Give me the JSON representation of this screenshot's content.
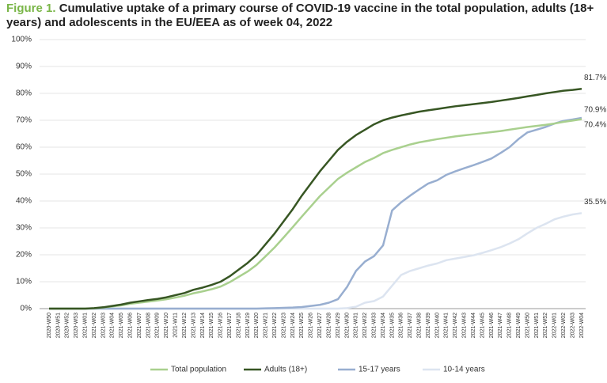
{
  "chart_data": {
    "type": "line",
    "figure_label": "Figure 1.",
    "title": "Cumulative uptake of a primary course of COVID-19 vaccine in the total population, adults (18+ years) and adolescents in the EU/EEA as of week 04, 2022",
    "categories": [
      "2020-W50",
      "2020-W51",
      "2020-W52",
      "2020-W53",
      "2021-W01",
      "2021-W02",
      "2021-W03",
      "2021-W04",
      "2021-W05",
      "2021-W06",
      "2021-W07",
      "2021-W08",
      "2021-W09",
      "2021-W10",
      "2021-W11",
      "2021-W12",
      "2021-W13",
      "2021-W14",
      "2021-W15",
      "2021-W16",
      "2021-W17",
      "2021-W18",
      "2021-W19",
      "2021-W20",
      "2021-W21",
      "2021-W22",
      "2021-W23",
      "2021-W24",
      "2021-W25",
      "2021-W26",
      "2021-W27",
      "2021-W28",
      "2021-W29",
      "2021-W30",
      "2021-W31",
      "2021-W32",
      "2021-W33",
      "2021-W34",
      "2021-W35",
      "2021-W36",
      "2021-W37",
      "2021-W38",
      "2021-W39",
      "2021-W40",
      "2021-W41",
      "2021-W42",
      "2021-W43",
      "2021-W44",
      "2021-W45",
      "2021-W46",
      "2021-W47",
      "2021-W48",
      "2021-W49",
      "2021-W50",
      "2021-W51",
      "2021-W52",
      "2022-W01",
      "2022-W02",
      "2022-W03",
      "2022-W04"
    ],
    "series": [
      {
        "name": "Total population",
        "color": "#a9d08e",
        "end_label": "70.4%",
        "values": [
          0,
          0,
          0,
          0,
          0,
          0.1,
          0.4,
          0.8,
          1.2,
          1.8,
          2.2,
          2.6,
          3,
          3.5,
          4.1,
          4.8,
          5.7,
          6.4,
          7.2,
          8.2,
          9.8,
          11.8,
          13.8,
          16.3,
          19.5,
          22.8,
          26.5,
          30.3,
          34.2,
          38,
          41.8,
          45,
          48.2,
          50.5,
          52.5,
          54.5,
          56,
          57.8,
          59,
          60,
          61,
          61.8,
          62.4,
          63,
          63.5,
          64,
          64.4,
          64.8,
          65.2,
          65.6,
          66,
          66.5,
          67,
          67.5,
          67.9,
          68.3,
          68.8,
          69.4,
          69.9,
          70.4
        ]
      },
      {
        "name": "Adults (18+)",
        "color": "#375623",
        "end_label": "81.7%",
        "values": [
          0,
          0,
          0,
          0,
          0,
          0.2,
          0.5,
          1,
          1.5,
          2.2,
          2.7,
          3.2,
          3.6,
          4.2,
          5,
          5.8,
          7,
          7.8,
          8.8,
          10,
          12,
          14.5,
          17,
          20,
          24,
          28,
          32.5,
          37,
          42,
          46.5,
          51,
          55,
          59,
          62,
          64.5,
          66.5,
          68.5,
          70,
          71,
          71.8,
          72.5,
          73.2,
          73.7,
          74.2,
          74.7,
          75.2,
          75.6,
          76,
          76.4,
          76.8,
          77.3,
          77.8,
          78.3,
          78.9,
          79.4,
          80,
          80.5,
          81,
          81.3,
          81.7
        ]
      },
      {
        "name": "15-17 years",
        "color": "#98aed0",
        "end_label": "70.9%",
        "values": [
          0,
          0,
          0,
          0,
          0,
          0,
          0,
          0,
          0,
          0,
          0,
          0,
          0,
          0,
          0,
          0,
          0,
          0,
          0,
          0,
          0,
          0,
          0,
          0,
          0.1,
          0.2,
          0.3,
          0.4,
          0.6,
          1,
          1.4,
          2.2,
          3.5,
          8,
          14,
          17.5,
          19.5,
          23.5,
          36.5,
          39.5,
          42,
          44.3,
          46.5,
          47.7,
          49.7,
          51,
          52.2,
          53.3,
          54.5,
          55.8,
          57.8,
          60,
          63,
          65.5,
          66.5,
          67.5,
          68.8,
          69.8,
          70.3,
          70.9
        ]
      },
      {
        "name": "10-14 years",
        "color": "#dce4f0",
        "end_label": "35.5%",
        "values": [
          0,
          0,
          0,
          0,
          0,
          0,
          0,
          0,
          0,
          0,
          0,
          0,
          0,
          0,
          0,
          0,
          0,
          0,
          0,
          0,
          0,
          0,
          0,
          0,
          0,
          0,
          0,
          0,
          0,
          0,
          0,
          0,
          0,
          0.2,
          0.7,
          2.2,
          2.8,
          4.5,
          8.5,
          12.5,
          14,
          15,
          16,
          16.8,
          18,
          18.6,
          19.2,
          19.8,
          20.7,
          21.7,
          22.8,
          24.2,
          25.8,
          28,
          30,
          31.5,
          33.2,
          34.2,
          35,
          35.5
        ]
      }
    ],
    "ylim": [
      0,
      100
    ],
    "yticks": [
      {
        "value": 0,
        "label": "0%"
      },
      {
        "value": 10,
        "label": "10%"
      },
      {
        "value": 20,
        "label": "20%"
      },
      {
        "value": 30,
        "label": "30%"
      },
      {
        "value": 40,
        "label": "40%"
      },
      {
        "value": 50,
        "label": "50%"
      },
      {
        "value": 60,
        "label": "60%"
      },
      {
        "value": 70,
        "label": "70%"
      },
      {
        "value": 80,
        "label": "80%"
      },
      {
        "value": 90,
        "label": "90%"
      },
      {
        "value": 100,
        "label": "100%"
      }
    ],
    "grid": true
  }
}
